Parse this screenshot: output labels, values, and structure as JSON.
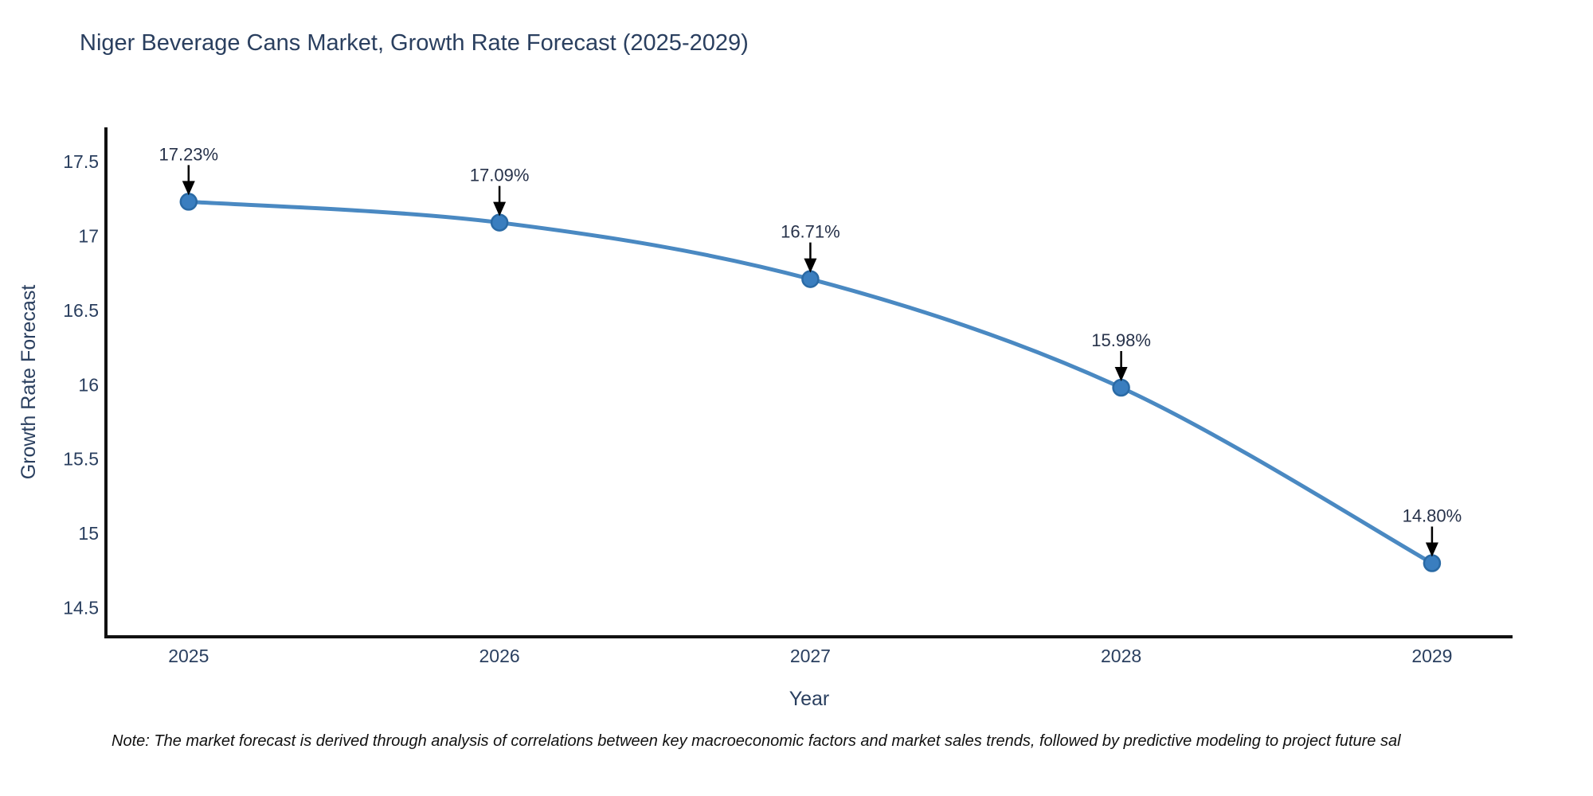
{
  "title": "Niger Beverage Cans Market, Growth Rate Forecast (2025-2029)",
  "note": "Note: The market forecast is derived through analysis of correlations between key macroeconomic factors and market sales trends, followed by predictive modeling to project future sal",
  "colors": {
    "line": "#4a89c2",
    "marker_fill": "#3a7ebf",
    "marker_stroke": "#2a6aa5",
    "axis_line": "#111111",
    "axis_text": "#2a3f5f",
    "annotation_text": "#27324a",
    "arrow": "#000000",
    "title_text": "#2a3f5f",
    "note_text": "#111111",
    "background": "#ffffff"
  },
  "chart_data": {
    "type": "line",
    "title": "Niger Beverage Cans Market, Growth Rate Forecast (2025-2029)",
    "xlabel": "Year",
    "ylabel": "Growth Rate Forecast",
    "x": [
      2025,
      2026,
      2027,
      2028,
      2029
    ],
    "values": [
      17.23,
      17.09,
      16.71,
      15.98,
      14.8
    ],
    "point_labels": [
      "17.23%",
      "17.09%",
      "16.71%",
      "15.98%",
      "14.80%"
    ],
    "x_tick_labels": [
      "2025",
      "2026",
      "2027",
      "2028",
      "2029"
    ],
    "y_ticks": [
      17.5,
      17.0,
      16.5,
      16.0,
      15.5,
      15.0,
      14.5
    ],
    "y_tick_labels": [
      "17.5",
      "17",
      "16.5",
      "16",
      "15.5",
      "15",
      "14.5"
    ],
    "xlim": [
      2024.734,
      2029.259
    ],
    "ylim": [
      14.305,
      17.73
    ],
    "grid": false,
    "legend": "none",
    "line_shape": "spline",
    "annotation_style": "down-arrow-to-point"
  }
}
